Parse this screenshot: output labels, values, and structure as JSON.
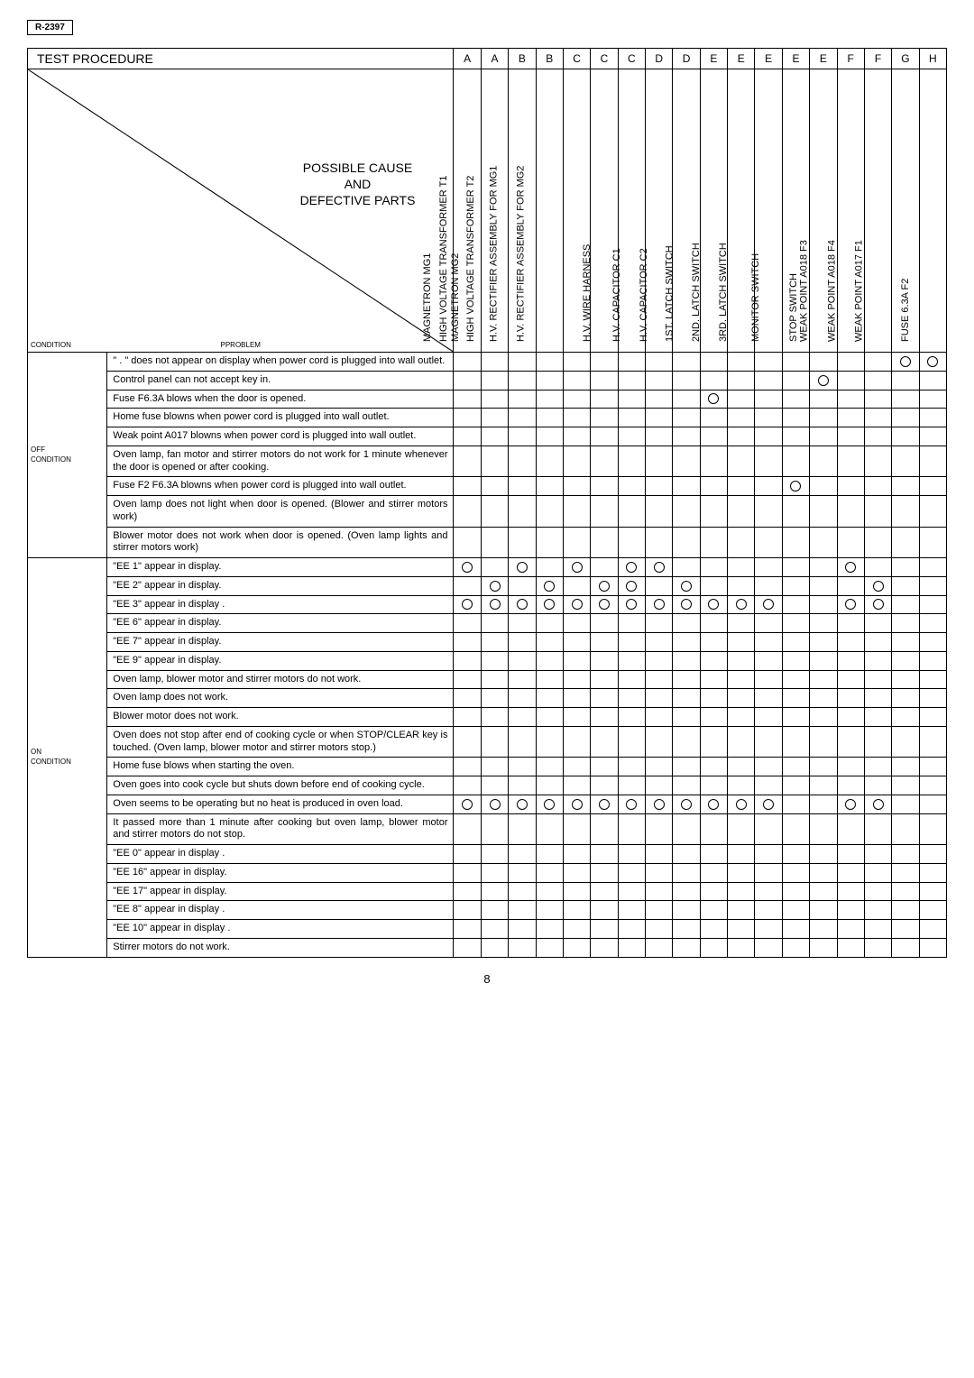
{
  "model": "R-2397",
  "header_title": "TEST PROCEDURE",
  "column_letters": [
    "A",
    "A",
    "B",
    "B",
    "C",
    "C",
    "C",
    "D",
    "D",
    "E",
    "E",
    "E",
    "E",
    "E",
    "F",
    "F",
    "G",
    "H"
  ],
  "diag_caption": "POSSIBLE CAUSE\nAND\nDEFECTIVE PARTS",
  "corner_condition": "CONDITION",
  "corner_problem": "PPROBLEM",
  "column_labels": [
    "MAGNETRON MG1",
    "MAGNETRON MG2",
    "HIGH VOLTAGE TRANSFORMER T1",
    "HIGH VOLTAGE TRANSFORMER T2",
    "H.V. RECTIFIER ASSEMBLY FOR MG1",
    "H.V. RECTIFIER ASSEMBLY FOR MG2",
    "H.V. WIRE HARNESS",
    "H.V. CAPACITOR C1",
    "H.V. CAPACITOR C2",
    "1ST. LATCH SWITCH",
    "2ND. LATCH SWITCH",
    "3RD. LATCH SWITCH",
    "MONITOR SWITCH",
    "STOP SWITCH",
    "WEAK POINT A018 F3",
    "WEAK POINT A018 F4",
    "WEAK POINT A017 F1",
    "FUSE 6.3A F2"
  ],
  "sections": [
    {
      "label": "OFF\nCONDITION",
      "rows": [
        {
          "problem": "\" . \" does not appear on display when power cord is plugged into wall outlet.",
          "marks": [
            0,
            0,
            0,
            0,
            0,
            0,
            0,
            0,
            0,
            0,
            0,
            0,
            0,
            0,
            0,
            0,
            1,
            1
          ]
        },
        {
          "problem": "Control panel can not accept key in.",
          "marks": [
            0,
            0,
            0,
            0,
            0,
            0,
            0,
            0,
            0,
            0,
            0,
            0,
            0,
            1,
            0,
            0,
            0,
            0
          ]
        },
        {
          "problem": "Fuse F6.3A blows when the door is opened.",
          "marks": [
            0,
            0,
            0,
            0,
            0,
            0,
            0,
            0,
            0,
            1,
            0,
            0,
            0,
            0,
            0,
            0,
            0,
            0
          ]
        },
        {
          "problem": "Home fuse blowns when power cord is plugged into wall outlet.",
          "marks": [
            0,
            0,
            0,
            0,
            0,
            0,
            0,
            0,
            0,
            0,
            0,
            0,
            0,
            0,
            0,
            0,
            0,
            0
          ]
        },
        {
          "problem": "Weak point A017 blowns when power cord is plugged into wall outlet.",
          "marks": [
            0,
            0,
            0,
            0,
            0,
            0,
            0,
            0,
            0,
            0,
            0,
            0,
            0,
            0,
            0,
            0,
            0,
            0
          ]
        },
        {
          "problem": "Oven lamp, fan motor and stirrer motors do not work for 1 minute whenever the door is opened or after cooking.",
          "marks": [
            0,
            0,
            0,
            0,
            0,
            0,
            0,
            0,
            0,
            0,
            0,
            0,
            0,
            0,
            0,
            0,
            0,
            0
          ]
        },
        {
          "problem": "Fuse F2 F6.3A blowns when power cord is plugged into wall outlet.",
          "marks": [
            0,
            0,
            0,
            0,
            0,
            0,
            0,
            0,
            0,
            0,
            0,
            0,
            1,
            0,
            0,
            0,
            0,
            0
          ]
        },
        {
          "problem": "Oven lamp does not light when door is opened. (Blower and stirrer motors work)",
          "marks": [
            0,
            0,
            0,
            0,
            0,
            0,
            0,
            0,
            0,
            0,
            0,
            0,
            0,
            0,
            0,
            0,
            0,
            0
          ]
        },
        {
          "problem": "Blower motor does not work when door is opened. (Oven lamp lights and stirrer motors work)",
          "marks": [
            0,
            0,
            0,
            0,
            0,
            0,
            0,
            0,
            0,
            0,
            0,
            0,
            0,
            0,
            0,
            0,
            0,
            0
          ]
        }
      ]
    },
    {
      "label": "ON\nCONDITION",
      "rows": [
        {
          "problem": "\"EE 1\" appear in display.",
          "marks": [
            1,
            0,
            1,
            0,
            1,
            0,
            1,
            1,
            0,
            0,
            0,
            0,
            0,
            0,
            1,
            0,
            0,
            0
          ]
        },
        {
          "problem": "\"EE 2\" appear in display.",
          "marks": [
            0,
            1,
            0,
            1,
            0,
            1,
            1,
            0,
            1,
            0,
            0,
            0,
            0,
            0,
            0,
            1,
            0,
            0
          ]
        },
        {
          "problem": "\"EE 3\" appear in display .",
          "marks": [
            1,
            1,
            1,
            1,
            1,
            1,
            1,
            1,
            1,
            1,
            1,
            1,
            0,
            0,
            1,
            1,
            0,
            0
          ]
        },
        {
          "problem": "\"EE 6\" appear in display.",
          "marks": [
            0,
            0,
            0,
            0,
            0,
            0,
            0,
            0,
            0,
            0,
            0,
            0,
            0,
            0,
            0,
            0,
            0,
            0
          ]
        },
        {
          "problem": "\"EE 7\" appear in display.",
          "marks": [
            0,
            0,
            0,
            0,
            0,
            0,
            0,
            0,
            0,
            0,
            0,
            0,
            0,
            0,
            0,
            0,
            0,
            0
          ]
        },
        {
          "problem": "\"EE 9\" appear in display.",
          "marks": [
            0,
            0,
            0,
            0,
            0,
            0,
            0,
            0,
            0,
            0,
            0,
            0,
            0,
            0,
            0,
            0,
            0,
            0
          ]
        },
        {
          "problem": "Oven lamp, blower motor and stirrer motors do not work.",
          "marks": [
            0,
            0,
            0,
            0,
            0,
            0,
            0,
            0,
            0,
            0,
            0,
            0,
            0,
            0,
            0,
            0,
            0,
            0
          ]
        },
        {
          "problem": "Oven lamp does not work.",
          "marks": [
            0,
            0,
            0,
            0,
            0,
            0,
            0,
            0,
            0,
            0,
            0,
            0,
            0,
            0,
            0,
            0,
            0,
            0
          ]
        },
        {
          "problem": "Blower motor does not work.",
          "marks": [
            0,
            0,
            0,
            0,
            0,
            0,
            0,
            0,
            0,
            0,
            0,
            0,
            0,
            0,
            0,
            0,
            0,
            0
          ]
        },
        {
          "problem": "Oven does not stop after end of cooking cycle or when STOP/CLEAR key is touched. (Oven lamp, blower motor and stirrer motors stop.)",
          "marks": [
            0,
            0,
            0,
            0,
            0,
            0,
            0,
            0,
            0,
            0,
            0,
            0,
            0,
            0,
            0,
            0,
            0,
            0
          ]
        },
        {
          "problem": "Home fuse blows when starting the oven.",
          "marks": [
            0,
            0,
            0,
            0,
            0,
            0,
            0,
            0,
            0,
            0,
            0,
            0,
            0,
            0,
            0,
            0,
            0,
            0
          ]
        },
        {
          "problem": "Oven goes into cook cycle but shuts down before end of cooking cycle.",
          "marks": [
            0,
            0,
            0,
            0,
            0,
            0,
            0,
            0,
            0,
            0,
            0,
            0,
            0,
            0,
            0,
            0,
            0,
            0
          ]
        },
        {
          "problem": "Oven seems to be operating but no heat is produced in oven load.",
          "marks": [
            1,
            1,
            1,
            1,
            1,
            1,
            1,
            1,
            1,
            1,
            1,
            1,
            0,
            0,
            1,
            1,
            0,
            0
          ]
        },
        {
          "problem": "It passed more than 1 minute after cooking but oven lamp, blower motor and stirrer motors do not stop.",
          "marks": [
            0,
            0,
            0,
            0,
            0,
            0,
            0,
            0,
            0,
            0,
            0,
            0,
            0,
            0,
            0,
            0,
            0,
            0
          ]
        },
        {
          "problem": "\"EE 0\" appear in display .",
          "marks": [
            0,
            0,
            0,
            0,
            0,
            0,
            0,
            0,
            0,
            0,
            0,
            0,
            0,
            0,
            0,
            0,
            0,
            0
          ]
        },
        {
          "problem": "\"EE 16\" appear in display.",
          "marks": [
            0,
            0,
            0,
            0,
            0,
            0,
            0,
            0,
            0,
            0,
            0,
            0,
            0,
            0,
            0,
            0,
            0,
            0
          ]
        },
        {
          "problem": "\"EE 17\" appear in display.",
          "marks": [
            0,
            0,
            0,
            0,
            0,
            0,
            0,
            0,
            0,
            0,
            0,
            0,
            0,
            0,
            0,
            0,
            0,
            0
          ]
        },
        {
          "problem": "\"EE 8\" appear in display .",
          "marks": [
            0,
            0,
            0,
            0,
            0,
            0,
            0,
            0,
            0,
            0,
            0,
            0,
            0,
            0,
            0,
            0,
            0,
            0
          ]
        },
        {
          "problem": "\"EE 10\" appear in display .",
          "marks": [
            0,
            0,
            0,
            0,
            0,
            0,
            0,
            0,
            0,
            0,
            0,
            0,
            0,
            0,
            0,
            0,
            0,
            0
          ]
        },
        {
          "problem": "Stirrer motors do not work.",
          "marks": [
            0,
            0,
            0,
            0,
            0,
            0,
            0,
            0,
            0,
            0,
            0,
            0,
            0,
            0,
            0,
            0,
            0,
            0
          ]
        }
      ]
    }
  ],
  "page_number": "8"
}
